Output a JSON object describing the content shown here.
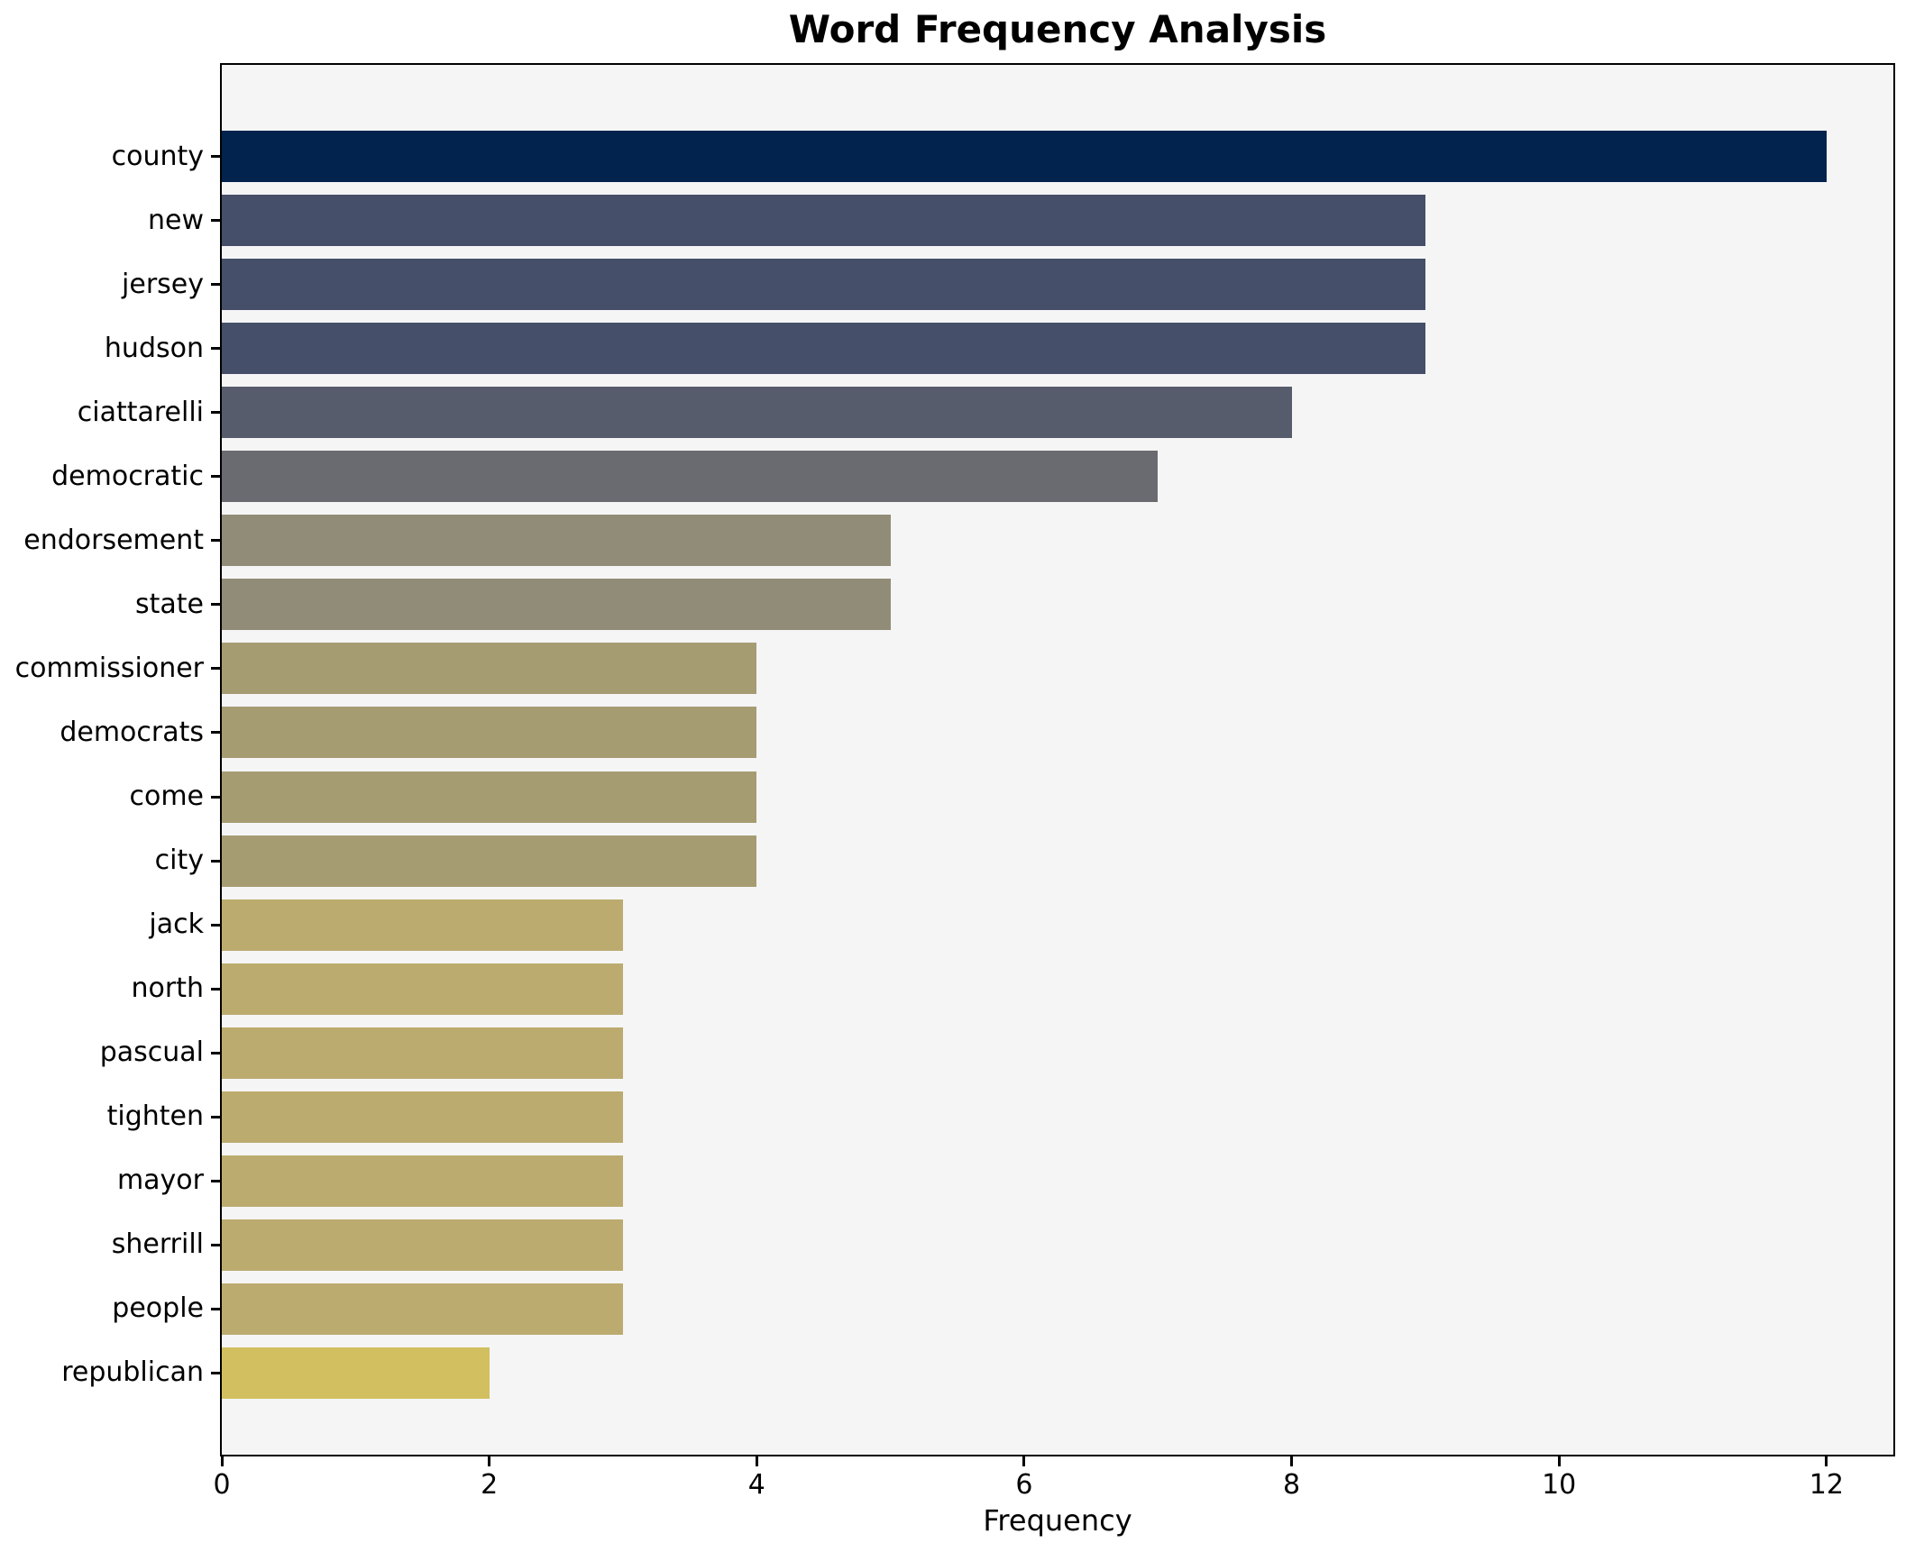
{
  "chart_data": {
    "type": "bar",
    "orientation": "horizontal",
    "title": "Word Frequency Analysis",
    "xlabel": "Frequency",
    "ylabel": "",
    "categories": [
      "county",
      "new",
      "jersey",
      "hudson",
      "ciattarelli",
      "democratic",
      "endorsement",
      "state",
      "commissioner",
      "democrats",
      "come",
      "city",
      "jack",
      "north",
      "pascual",
      "tighten",
      "mayor",
      "sherrill",
      "people",
      "republican"
    ],
    "values": [
      12,
      9,
      9,
      9,
      8,
      7,
      5,
      5,
      4,
      4,
      4,
      4,
      3,
      3,
      3,
      3,
      3,
      3,
      3,
      2
    ],
    "bar_colors": [
      "#01234e",
      "#454f69",
      "#454f69",
      "#454f69",
      "#565c6b",
      "#6a6b70",
      "#918c77",
      "#918c77",
      "#a69c72",
      "#a69c72",
      "#a69c72",
      "#a69c72",
      "#bcab6e",
      "#bcab6e",
      "#bcab6e",
      "#bcab6e",
      "#bcab6e",
      "#bcab6e",
      "#bcab6e",
      "#d2bf60"
    ],
    "xlim": [
      0,
      12.5
    ],
    "xticks": [
      0,
      2,
      4,
      6,
      8,
      10,
      12
    ],
    "grid": false,
    "legend": "none",
    "plot_background": "#f5f5f6",
    "figure_background": "#ffffff",
    "spine_color": "#000000"
  }
}
